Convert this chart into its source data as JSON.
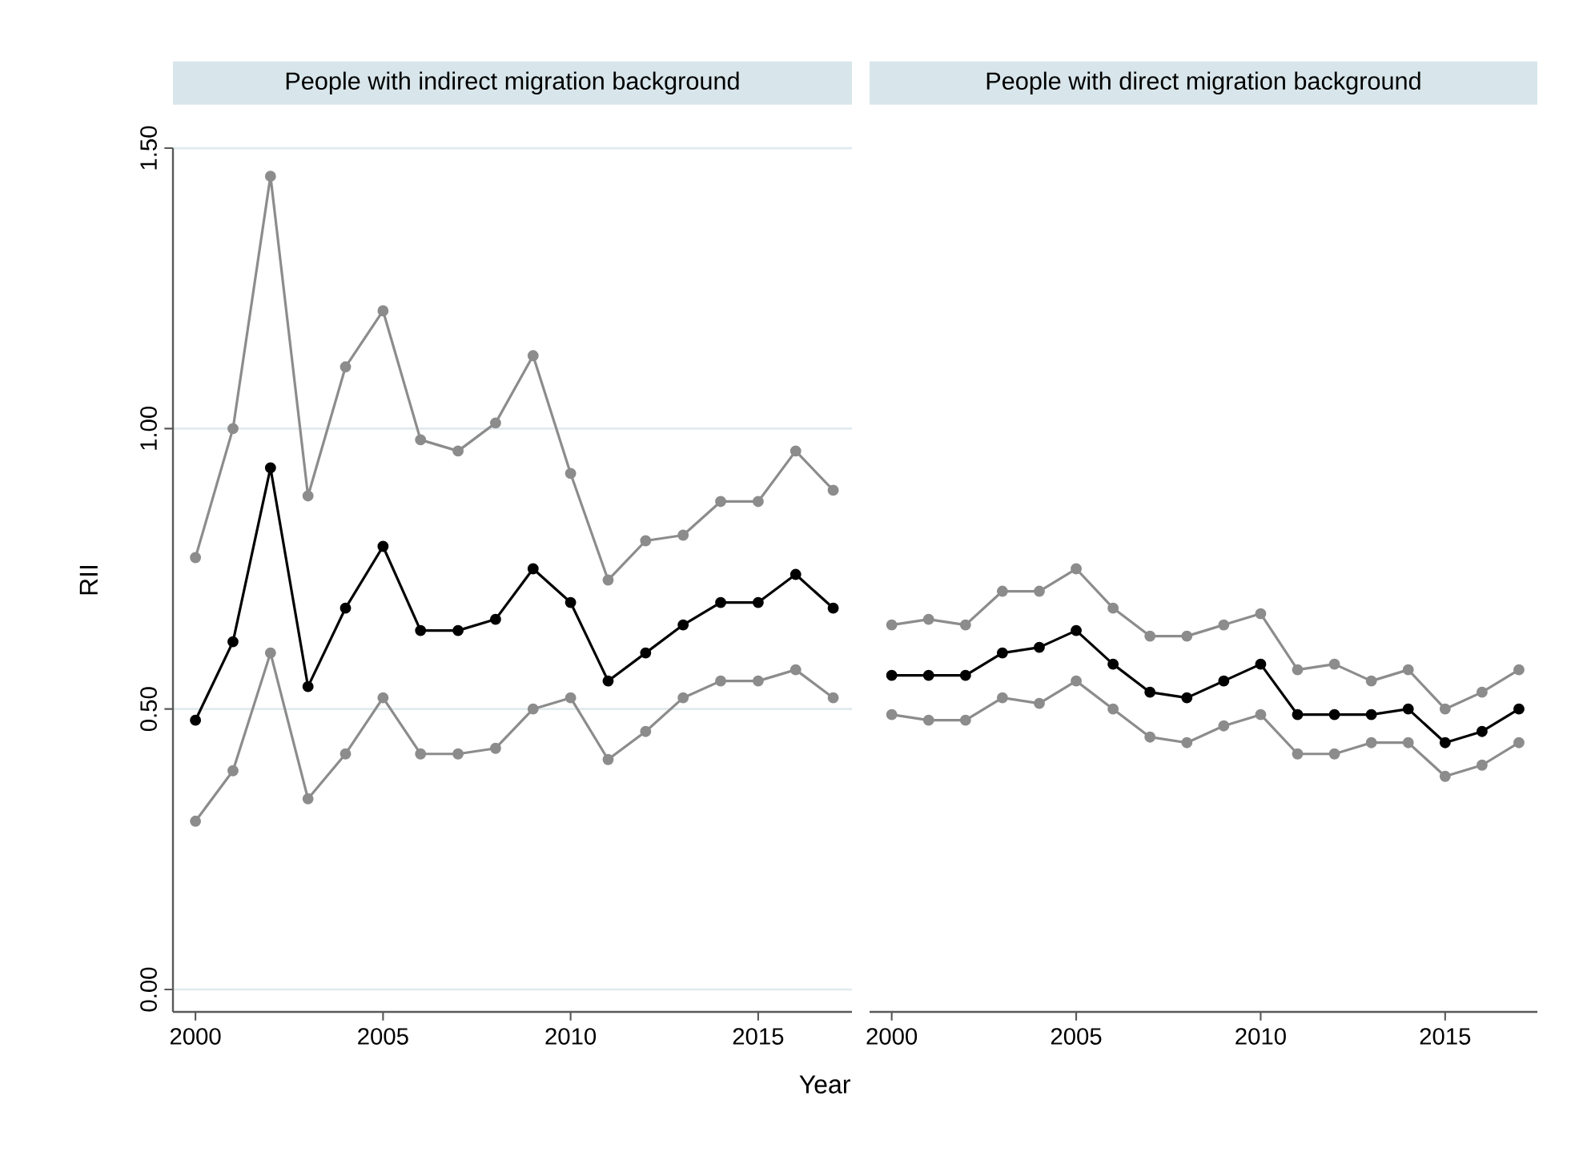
{
  "chart_data": [
    {
      "type": "line",
      "title": "People with indirect migration background",
      "xlabel": "Year",
      "ylabel": "RII",
      "x": [
        2000,
        2001,
        2002,
        2003,
        2004,
        2005,
        2006,
        2007,
        2008,
        2009,
        2010,
        2011,
        2012,
        2013,
        2014,
        2015,
        2016,
        2017
      ],
      "series": [
        {
          "color": "#8c8c8c",
          "values": [
            0.77,
            1.0,
            1.45,
            0.88,
            1.11,
            1.21,
            0.98,
            0.96,
            1.01,
            1.13,
            0.92,
            0.73,
            0.8,
            0.81,
            0.87,
            0.87,
            0.96,
            0.89
          ]
        },
        {
          "color": "#000000",
          "values": [
            0.48,
            0.62,
            0.93,
            0.54,
            0.68,
            0.79,
            0.64,
            0.64,
            0.66,
            0.75,
            0.69,
            0.55,
            0.6,
            0.65,
            0.69,
            0.69,
            0.74,
            0.68
          ]
        },
        {
          "color": "#8c8c8c",
          "values": [
            0.3,
            0.39,
            0.6,
            0.34,
            0.42,
            0.52,
            0.42,
            0.42,
            0.43,
            0.5,
            0.52,
            0.41,
            0.46,
            0.52,
            0.55,
            0.55,
            0.57,
            0.52
          ]
        }
      ],
      "xlim": [
        1999.4,
        2017.5
      ],
      "ylim": [
        -0.04,
        1.5
      ],
      "xticks": [
        2000,
        2005,
        2010,
        2015
      ],
      "yticks": [
        {
          "value": 0,
          "label": "0.00"
        },
        {
          "value": 0.5,
          "label": "0.50"
        },
        {
          "value": 1,
          "label": "1.00"
        },
        {
          "value": 1.5,
          "label": "1.50"
        }
      ],
      "grid": "y",
      "marker": "circle",
      "line_style": "solid"
    },
    {
      "type": "line",
      "title": "People with direct migration background",
      "x": [
        2000,
        2001,
        2002,
        2003,
        2004,
        2005,
        2006,
        2007,
        2008,
        2009,
        2010,
        2011,
        2012,
        2013,
        2014,
        2015,
        2016,
        2017
      ],
      "series": [
        {
          "color": "#8c8c8c",
          "values": [
            0.65,
            0.66,
            0.65,
            0.71,
            0.71,
            0.75,
            0.68,
            0.63,
            0.63,
            0.65,
            0.67,
            0.57,
            0.58,
            0.55,
            0.57,
            0.5,
            0.53,
            0.57
          ]
        },
        {
          "color": "#000000",
          "values": [
            0.56,
            0.56,
            0.56,
            0.6,
            0.61,
            0.64,
            0.58,
            0.53,
            0.52,
            0.55,
            0.58,
            0.49,
            0.49,
            0.49,
            0.5,
            0.44,
            0.46,
            0.5
          ]
        },
        {
          "color": "#8c8c8c",
          "values": [
            0.49,
            0.48,
            0.48,
            0.52,
            0.51,
            0.55,
            0.5,
            0.45,
            0.44,
            0.47,
            0.49,
            0.42,
            0.42,
            0.44,
            0.44,
            0.38,
            0.4,
            0.44
          ]
        }
      ],
      "xlim": [
        1999.4,
        2017.5
      ],
      "ylim": [
        -0.04,
        1.5
      ],
      "xticks": [
        2000,
        2005,
        2010,
        2015
      ],
      "yticks": [
        {
          "value": 0,
          "label": null
        },
        {
          "value": 0.5,
          "label": null
        },
        {
          "value": 1,
          "label": null
        },
        {
          "value": 1.5,
          "label": null
        }
      ],
      "grid": "y",
      "marker": "circle",
      "line_style": "solid",
      "tick_labels": "x"
    }
  ]
}
